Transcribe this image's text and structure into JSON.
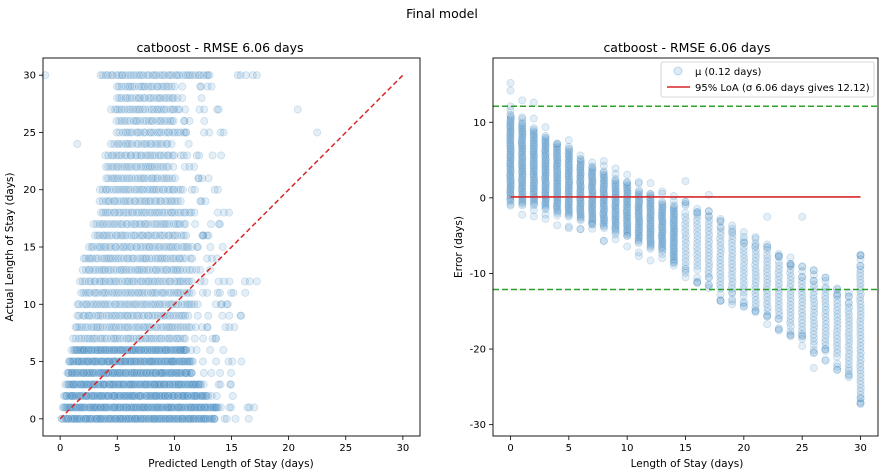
{
  "figure": {
    "suptitle": "Final model"
  },
  "chart_data": [
    {
      "type": "scatter",
      "title": "catboost - RMSE 6.06 days",
      "xlabel": "Predicted Length of Stay (days)",
      "ylabel": "Actual Length of Stay (days)",
      "xlim": [
        -1.5,
        31.5
      ],
      "ylim": [
        -1.5,
        31.5
      ],
      "xticks": [
        0,
        5,
        10,
        15,
        20,
        25,
        30
      ],
      "yticks": [
        0,
        5,
        10,
        15,
        20,
        25,
        30
      ],
      "grid": false,
      "point_color": "#1f77b4",
      "point_alpha": 0.12,
      "reference_line": {
        "x": [
          0,
          30
        ],
        "y": [
          0,
          30
        ],
        "style": "dashed",
        "color": "#d62728"
      },
      "density": [
        {
          "y": 0,
          "x_from": 0.1,
          "x_to": 13.5,
          "sparse_to": 17.0
        },
        {
          "y": 1,
          "x_from": 0.2,
          "x_to": 14.0,
          "sparse_to": 17.0
        },
        {
          "y": 2,
          "x_from": 0.3,
          "x_to": 13.0,
          "sparse_to": 15.5
        },
        {
          "y": 3,
          "x_from": 0.5,
          "x_to": 12.5,
          "sparse_to": 15.5
        },
        {
          "y": 4,
          "x_from": 0.6,
          "x_to": 11.5,
          "sparse_to": 15.0
        },
        {
          "y": 5,
          "x_from": 0.7,
          "x_to": 11.5,
          "sparse_to": 16.0
        },
        {
          "y": 6,
          "x_from": 1.0,
          "x_to": 11.0,
          "sparse_to": 15.5
        },
        {
          "y": 7,
          "x_from": 1.2,
          "x_to": 11.0,
          "sparse_to": 15.0
        },
        {
          "y": 8,
          "x_from": 1.3,
          "x_to": 11.5,
          "sparse_to": 16.5
        },
        {
          "y": 9,
          "x_from": 1.5,
          "x_to": 11.0,
          "sparse_to": 16.0
        },
        {
          "y": 10,
          "x_from": 1.5,
          "x_to": 12.0,
          "sparse_to": 16.0
        },
        {
          "y": 11,
          "x_from": 1.8,
          "x_to": 11.5,
          "sparse_to": 17.0
        },
        {
          "y": 12,
          "x_from": 1.8,
          "x_to": 11.5,
          "sparse_to": 18.0
        },
        {
          "y": 13,
          "x_from": 2.0,
          "x_to": 11.0,
          "sparse_to": 15.0
        },
        {
          "y": 14,
          "x_from": 2.0,
          "x_to": 11.0,
          "sparse_to": 15.0
        },
        {
          "y": 15,
          "x_from": 2.5,
          "x_to": 11.5,
          "sparse_to": 14.5
        },
        {
          "y": 16,
          "x_from": 3.0,
          "x_to": 11.0,
          "sparse_to": 14.5
        },
        {
          "y": 17,
          "x_from": 3.0,
          "x_to": 11.0,
          "sparse_to": 14.0
        },
        {
          "y": 18,
          "x_from": 3.5,
          "x_to": 11.0,
          "sparse_to": 15.0
        },
        {
          "y": 19,
          "x_from": 3.5,
          "x_to": 10.5,
          "sparse_to": 13.0
        },
        {
          "y": 20,
          "x_from": 3.5,
          "x_to": 10.5,
          "sparse_to": 14.0
        },
        {
          "y": 21,
          "x_from": 4.0,
          "x_to": 10.0,
          "sparse_to": 13.0
        },
        {
          "y": 22,
          "x_from": 4.0,
          "x_to": 9.5,
          "sparse_to": 12.5
        },
        {
          "y": 23,
          "x_from": 4.0,
          "x_to": 10.0,
          "sparse_to": 15.0
        },
        {
          "y": 24,
          "x_from": 4.5,
          "x_to": 9.0,
          "sparse_to": 12.0
        },
        {
          "y": 25,
          "x_from": 5.0,
          "x_to": 11.0,
          "sparse_to": 14.5
        },
        {
          "y": 26,
          "x_from": 5.0,
          "x_to": 10.0,
          "sparse_to": 13.0
        },
        {
          "y": 27,
          "x_from": 4.5,
          "x_to": 10.5,
          "sparse_to": 14.0
        },
        {
          "y": 28,
          "x_from": 5.0,
          "x_to": 10.0,
          "sparse_to": 12.5
        },
        {
          "y": 29,
          "x_from": 5.0,
          "x_to": 10.0,
          "sparse_to": 13.5
        },
        {
          "y": 30,
          "x_from": 3.5,
          "x_to": 13.0,
          "sparse_to": 17.5
        }
      ],
      "outliers": [
        [
          -1.3,
          30
        ],
        [
          20.8,
          27
        ],
        [
          22.5,
          25
        ],
        [
          1.5,
          24
        ],
        [
          17.0,
          1
        ],
        [
          13.8,
          18
        ]
      ]
    },
    {
      "type": "scatter",
      "title": "catboost - RMSE 6.06 days",
      "xlabel": "Length of Stay (days)",
      "ylabel": "Error (days)",
      "xlim": [
        -1.5,
        31.5
      ],
      "ylim": [
        -31.5,
        18.5
      ],
      "xticks": [
        0,
        5,
        10,
        15,
        20,
        25,
        30
      ],
      "yticks": [
        -30,
        -20,
        -10,
        0,
        10
      ],
      "grid": false,
      "point_color": "#1f77b4",
      "point_alpha": 0.12,
      "error_columns": [
        {
          "x": 0,
          "top": 11.0,
          "bottom": -0.5
        },
        {
          "x": 1,
          "top": 10.0,
          "bottom": -0.8
        },
        {
          "x": 2,
          "top": 9.0,
          "bottom": -1.0
        },
        {
          "x": 3,
          "top": 8.0,
          "bottom": -1.5
        },
        {
          "x": 4,
          "top": 7.0,
          "bottom": -2.0
        },
        {
          "x": 5,
          "top": 6.5,
          "bottom": -2.5
        },
        {
          "x": 6,
          "top": 5.0,
          "bottom": -3.0
        },
        {
          "x": 7,
          "top": 4.0,
          "bottom": -3.5
        },
        {
          "x": 8,
          "top": 3.5,
          "bottom": -4.0
        },
        {
          "x": 9,
          "top": 2.5,
          "bottom": -4.5
        },
        {
          "x": 10,
          "top": 2.0,
          "bottom": -5.0
        },
        {
          "x": 11,
          "top": 1.0,
          "bottom": -6.0
        },
        {
          "x": 12,
          "top": 0.5,
          "bottom": -6.5
        },
        {
          "x": 13,
          "top": -0.5,
          "bottom": -7.0
        },
        {
          "x": 14,
          "top": -1.0,
          "bottom": -8.5
        },
        {
          "x": 15,
          "top": -2.0,
          "bottom": -9.0
        },
        {
          "x": 16,
          "top": -2.5,
          "bottom": -9.5
        },
        {
          "x": 17,
          "top": -3.0,
          "bottom": -10.5
        },
        {
          "x": 18,
          "top": -4.0,
          "bottom": -12.0
        },
        {
          "x": 19,
          "top": -5.0,
          "bottom": -12.5
        },
        {
          "x": 20,
          "top": -6.0,
          "bottom": -13.0
        },
        {
          "x": 21,
          "top": -6.5,
          "bottom": -14.0
        },
        {
          "x": 22,
          "top": -7.5,
          "bottom": -15.0
        },
        {
          "x": 23,
          "top": -8.5,
          "bottom": -16.0
        },
        {
          "x": 24,
          "top": -9.0,
          "bottom": -17.0
        },
        {
          "x": 25,
          "top": -10.5,
          "bottom": -18.0
        },
        {
          "x": 26,
          "top": -11.0,
          "bottom": -19.0
        },
        {
          "x": 27,
          "top": -12.0,
          "bottom": -20.0
        },
        {
          "x": 28,
          "top": -13.0,
          "bottom": -21.0
        },
        {
          "x": 29,
          "top": -14.0,
          "bottom": -22.5
        },
        {
          "x": 30,
          "top": -9.0,
          "bottom": -26.5
        }
      ],
      "outliers": [
        [
          0,
          15.2
        ],
        [
          0,
          14.2
        ],
        [
          2,
          12.6
        ],
        [
          1,
          12.9
        ],
        [
          22,
          -2.5
        ],
        [
          15,
          2.2
        ],
        [
          17,
          0.4
        ],
        [
          25,
          -2.5
        ],
        [
          26,
          -22.5
        ],
        [
          30,
          -9
        ]
      ],
      "mean_line": {
        "y": 0.12,
        "x_from": 0,
        "x_to": 30,
        "color": "#d62728"
      },
      "loa_lines": [
        {
          "y": 12.12,
          "style": "dashed",
          "color": "#2ca02c"
        },
        {
          "y": -12.12,
          "style": "dashed",
          "color": "#2ca02c"
        }
      ],
      "legend": {
        "position": "upper right",
        "entries": [
          {
            "label": "μ (0.12 days)",
            "marker": "circle"
          },
          {
            "label": "95% LoA (σ 6.06 days gives 12.12)",
            "marker": "line"
          }
        ]
      }
    }
  ]
}
